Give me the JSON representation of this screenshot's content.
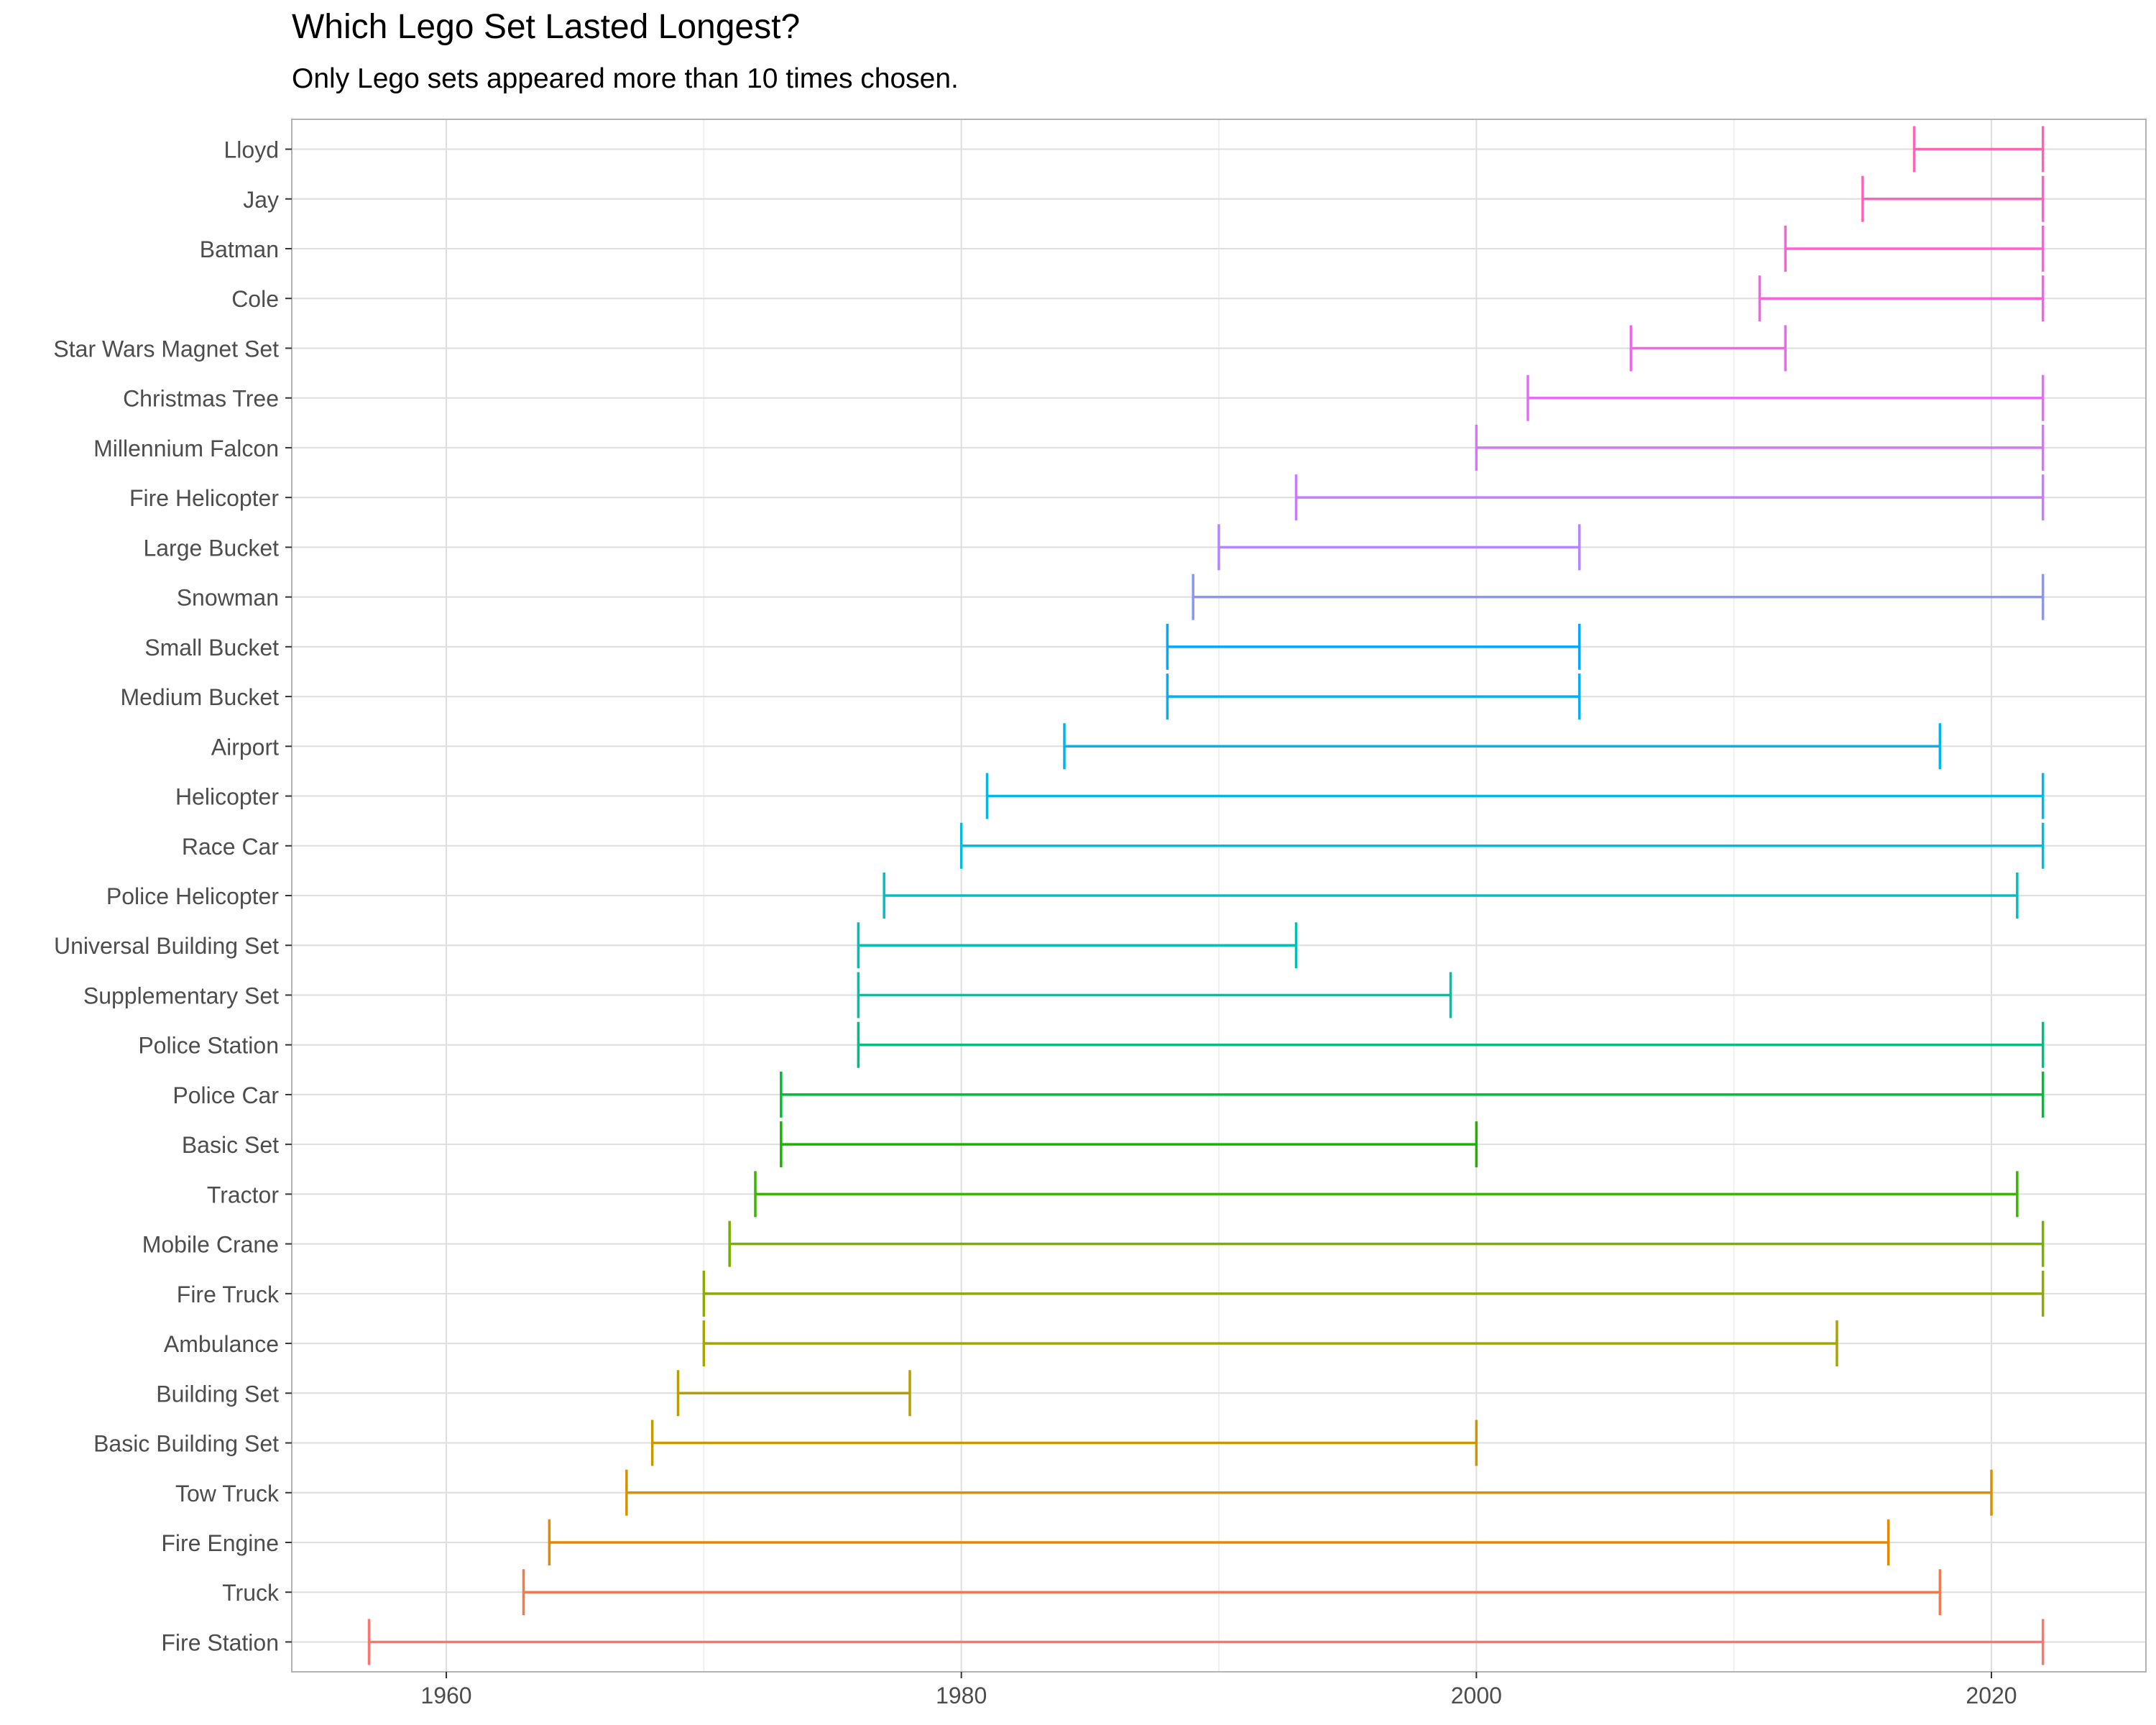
{
  "chart_data": {
    "type": "range",
    "title": "Which Lego Set Lasted Longest?",
    "subtitle": "Only Lego sets appeared more than 10 times chosen.",
    "xlabel": "",
    "ylabel": "",
    "xlim": [
      1954,
      2026
    ],
    "xticks": [
      1960,
      1980,
      2000,
      2020
    ],
    "grid": true,
    "legend": "none",
    "series": [
      {
        "label": "Lloyd",
        "start": 2017,
        "end": 2022,
        "color": "#FF64B0"
      },
      {
        "label": "Jay",
        "start": 2015,
        "end": 2022,
        "color": "#FF62BC"
      },
      {
        "label": "Batman",
        "start": 2012,
        "end": 2022,
        "color": "#FD61D1"
      },
      {
        "label": "Cole",
        "start": 2011,
        "end": 2022,
        "color": "#F962DD"
      },
      {
        "label": "Star Wars Magnet Set",
        "start": 2006,
        "end": 2012,
        "color": "#F066EA"
      },
      {
        "label": "Christmas Tree",
        "start": 2002,
        "end": 2022,
        "color": "#E36EF6"
      },
      {
        "label": "Millennium Falcon",
        "start": 2000,
        "end": 2022,
        "color": "#D575FE"
      },
      {
        "label": "Fire Helicopter",
        "start": 1993,
        "end": 2022,
        "color": "#C77CFF"
      },
      {
        "label": "Large Bucket",
        "start": 1990,
        "end": 2004,
        "color": "#B385FF"
      },
      {
        "label": "Snowman",
        "start": 1989,
        "end": 2022,
        "color": "#8B93FF"
      },
      {
        "label": "Small Bucket",
        "start": 1988,
        "end": 2004,
        "color": "#00A9FF"
      },
      {
        "label": "Medium Bucket",
        "start": 1988,
        "end": 2004,
        "color": "#00AEFA"
      },
      {
        "label": "Airport",
        "start": 1984,
        "end": 2018,
        "color": "#00B4F0"
      },
      {
        "label": "Helicopter",
        "start": 1981,
        "end": 2022,
        "color": "#00B8E7"
      },
      {
        "label": "Race Car",
        "start": 1980,
        "end": 2022,
        "color": "#00BCD8"
      },
      {
        "label": "Police Helicopter",
        "start": 1977,
        "end": 2021,
        "color": "#00BFC4"
      },
      {
        "label": "Universal Building Set",
        "start": 1976,
        "end": 1993,
        "color": "#00C0B2"
      },
      {
        "label": "Supplementary Set",
        "start": 1976,
        "end": 1999,
        "color": "#00C1A3"
      },
      {
        "label": "Police Station",
        "start": 1976,
        "end": 2022,
        "color": "#00BF7D"
      },
      {
        "label": "Police Car",
        "start": 1973,
        "end": 2022,
        "color": "#00BA38"
      },
      {
        "label": "Basic Set",
        "start": 1973,
        "end": 2000,
        "color": "#1BB300"
      },
      {
        "label": "Tractor",
        "start": 1972,
        "end": 2021,
        "color": "#39B600"
      },
      {
        "label": "Mobile Crane",
        "start": 1971,
        "end": 2022,
        "color": "#7CAE00"
      },
      {
        "label": "Fire Truck",
        "start": 1970,
        "end": 2022,
        "color": "#8CAB00"
      },
      {
        "label": "Ambulance",
        "start": 1970,
        "end": 2014,
        "color": "#A3A500"
      },
      {
        "label": "Building Set",
        "start": 1969,
        "end": 1978,
        "color": "#B79F00"
      },
      {
        "label": "Basic Building Set",
        "start": 1968,
        "end": 2000,
        "color": "#C99800"
      },
      {
        "label": "Tow Truck",
        "start": 1967,
        "end": 2020,
        "color": "#D89000"
      },
      {
        "label": "Fire Engine",
        "start": 1964,
        "end": 2016,
        "color": "#E58700"
      },
      {
        "label": "Truck",
        "start": 1963,
        "end": 2018,
        "color": "#F07C4E"
      },
      {
        "label": "Fire Station",
        "start": 1957,
        "end": 2022,
        "color": "#F8766D"
      }
    ]
  }
}
